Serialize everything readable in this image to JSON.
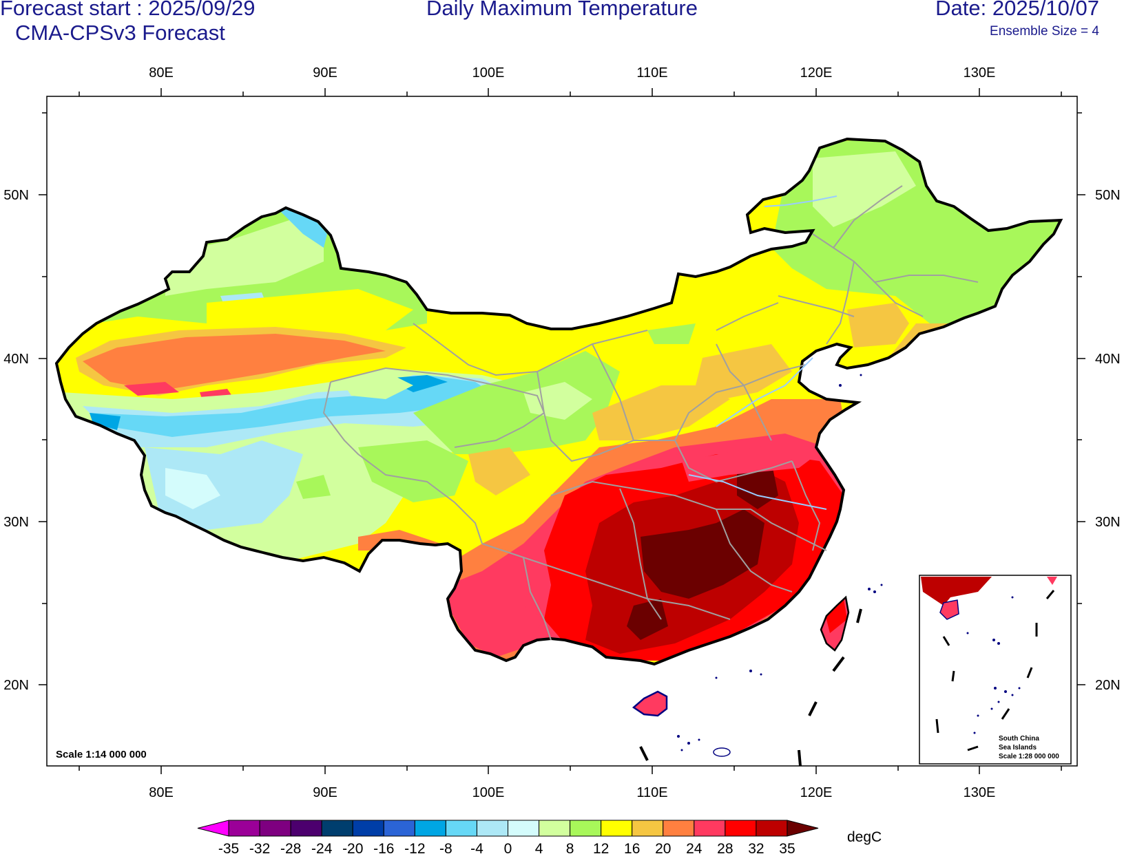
{
  "header": {
    "forecast_start": "Forecast start : 2025/09/29",
    "model": "CMA-CPSv3 Forecast",
    "title": "Daily Maximum Temperature",
    "date": "Date: 2025/10/07",
    "ensemble": "Ensemble Size = 4"
  },
  "axes": {
    "lon_labels": [
      "80E",
      "90E",
      "100E",
      "110E",
      "120E",
      "130E"
    ],
    "lat_labels": [
      "50N",
      "40N",
      "30N",
      "20N"
    ]
  },
  "map": {
    "scale": "Scale 1:14 000 000",
    "inset_lines": [
      "South China",
      "Sea Islands",
      "Scale 1:28 000 000"
    ]
  },
  "colorbar": {
    "unit": "degC",
    "tick_labels": [
      "-35",
      "-32",
      "-28",
      "-24",
      "-20",
      "-16",
      "-12",
      "-8",
      "-4",
      "0",
      "4",
      "8",
      "12",
      "16",
      "20",
      "24",
      "28",
      "32",
      "35"
    ],
    "colors": [
      "#ff00ff",
      "#9b0098",
      "#7e0080",
      "#4c006e",
      "#003e6e",
      "#003ea8",
      "#2b64d6",
      "#00a6e4",
      "#66d8f6",
      "#ade8f6",
      "#d4fcfc",
      "#d2ff9e",
      "#a8f75a",
      "#ffff00",
      "#f5c642",
      "#ff8040",
      "#ff3a60",
      "#ff0000",
      "#bd0000",
      "#6b0000"
    ]
  },
  "legend_colors": {
    "border": "#000000",
    "provinces": "#a0a0a0",
    "rivers": "#99ccff",
    "coast": "#000080"
  }
}
